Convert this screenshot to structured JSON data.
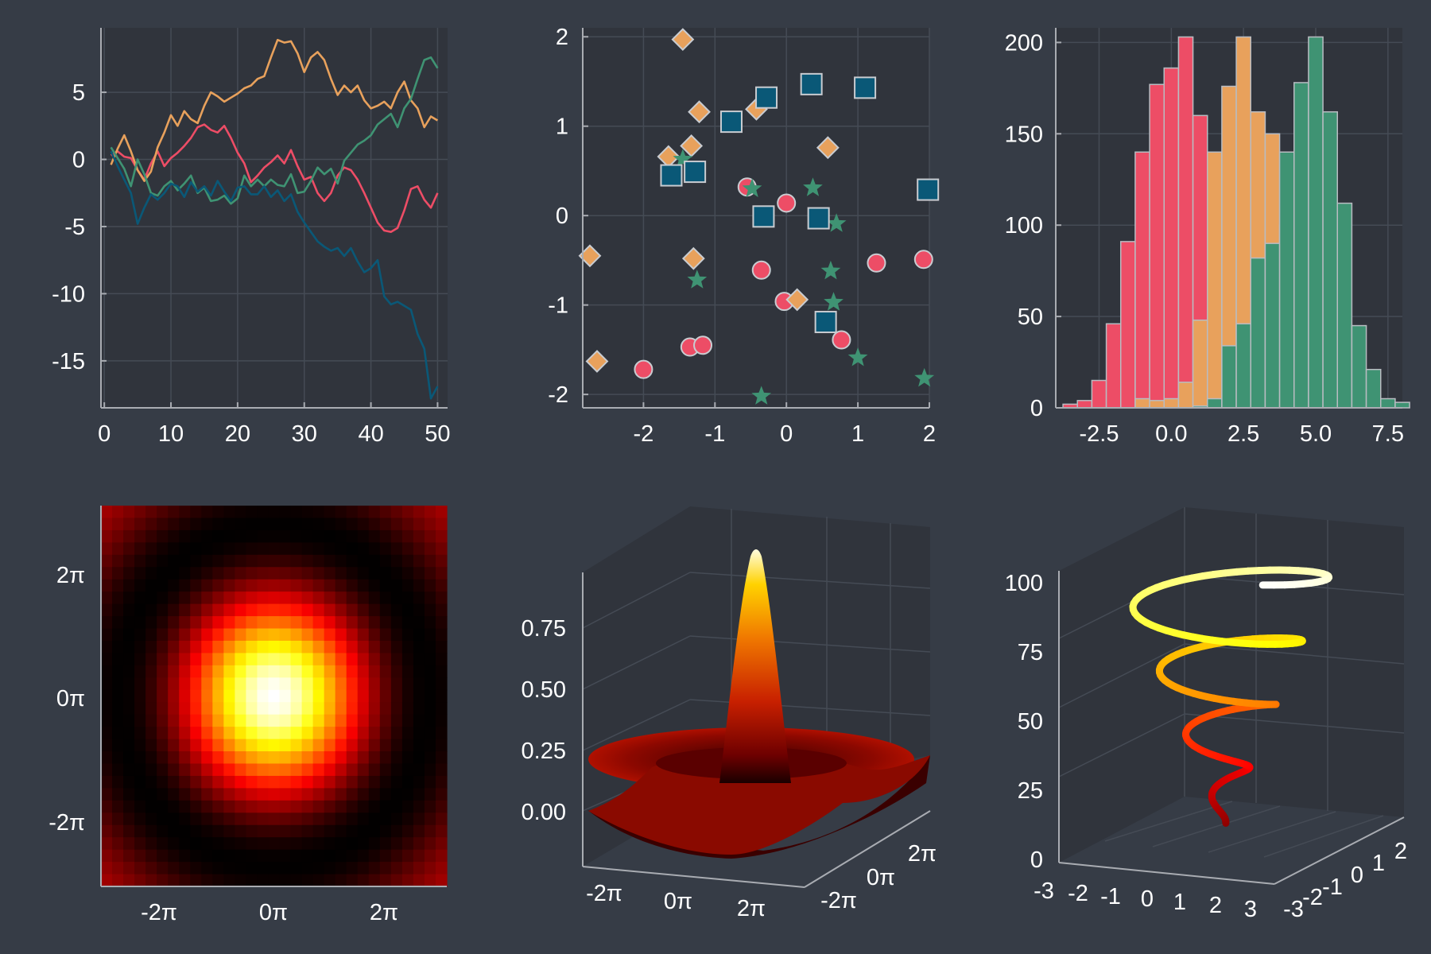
{
  "colors": {
    "background": "#363c46",
    "plot_bg": "#30343c",
    "grid": "#454b55",
    "axis": "#a9acb2",
    "text": "#ffffff",
    "series": [
      "#ed4d66",
      "#e8a15c",
      "#3f9373",
      "#0a5877"
    ]
  },
  "chart_data": [
    {
      "type": "line",
      "grid": true,
      "x": [
        1,
        2,
        3,
        4,
        5,
        6,
        7,
        8,
        9,
        10,
        11,
        12,
        13,
        14,
        15,
        16,
        17,
        18,
        19,
        20,
        21,
        22,
        23,
        24,
        25,
        26,
        27,
        28,
        29,
        30,
        31,
        32,
        33,
        34,
        35,
        36,
        37,
        38,
        39,
        40,
        41,
        42,
        43,
        44,
        45,
        46,
        47,
        48,
        49,
        50
      ],
      "xticks": [
        0,
        10,
        20,
        30,
        40,
        50
      ],
      "yticks": [
        5,
        0,
        -5,
        -10,
        -15
      ],
      "xlim": [
        -0.5,
        51.5
      ],
      "ylim": [
        -18.5,
        9.8
      ],
      "series": [
        {
          "color": "#ed4d66",
          "values": [
            0.3,
            0.6,
            0.2,
            0.1,
            -0.8,
            -1.5,
            -0.3,
            0.6,
            -0.5,
            0.1,
            0.5,
            1.0,
            1.6,
            2.4,
            2.6,
            2.2,
            2.0,
            2.5,
            1.6,
            0.5,
            -0.3,
            -1.7,
            -1.2,
            -0.6,
            -0.2,
            0.3,
            -0.3,
            0.7,
            -0.5,
            -1.5,
            -1.3,
            -2.5,
            -3.1,
            -2.5,
            -1.2,
            -0.6,
            -0.8,
            -1.5,
            -2.5,
            -3.6,
            -4.7,
            -5.3,
            -5.4,
            -5.1,
            -3.8,
            -2.2,
            -2.0,
            -3.0,
            -3.6,
            -2.5
          ]
        },
        {
          "color": "#e8a15c",
          "values": [
            -0.4,
            0.8,
            1.8,
            0.6,
            -0.8,
            -1.6,
            -0.9,
            0.9,
            2.0,
            3.3,
            2.5,
            3.6,
            3.0,
            2.7,
            4.0,
            5.0,
            4.7,
            4.3,
            4.6,
            4.9,
            5.3,
            5.5,
            6.0,
            6.2,
            7.6,
            8.9,
            8.7,
            8.8,
            7.9,
            6.5,
            7.6,
            8.0,
            7.4,
            6.0,
            4.8,
            5.5,
            5.0,
            5.5,
            4.4,
            3.8,
            4.0,
            4.3,
            3.8,
            5.0,
            5.8,
            4.4,
            3.8,
            2.4,
            3.2,
            2.9
          ]
        },
        {
          "color": "#3f9373",
          "values": [
            0.9,
            0.1,
            -0.7,
            -2.0,
            0.0,
            -1.1,
            -2.5,
            -2.7,
            -2.0,
            -1.6,
            -2.3,
            -1.8,
            -1.2,
            -2.5,
            -2.1,
            -3.1,
            -3.0,
            -2.7,
            -3.3,
            -2.9,
            -1.2,
            -2.0,
            -1.5,
            -2.0,
            -1.5,
            -1.9,
            -2.0,
            -1.1,
            -2.5,
            -2.4,
            -1.6,
            -0.6,
            -1.1,
            -0.7,
            -1.8,
            -0.1,
            0.5,
            1.1,
            1.4,
            1.8,
            2.6,
            3.0,
            3.4,
            2.4,
            3.8,
            4.5,
            6.0,
            7.4,
            7.6,
            6.8
          ]
        },
        {
          "color": "#0a5877",
          "values": [
            0.6,
            -0.5,
            -1.5,
            -2.5,
            -4.8,
            -3.6,
            -2.6,
            -3.0,
            -2.5,
            -1.8,
            -2.0,
            -2.8,
            -1.7,
            -2.4,
            -2.0,
            -2.7,
            -1.6,
            -2.4,
            -3.1,
            -2.1,
            -2.0,
            -2.6,
            -2.6,
            -2.0,
            -2.8,
            -2.3,
            -3.1,
            -2.6,
            -3.9,
            -4.7,
            -5.4,
            -6.1,
            -6.5,
            -6.8,
            -6.6,
            -7.2,
            -6.6,
            -7.6,
            -8.4,
            -8.1,
            -7.5,
            -10.2,
            -10.8,
            -10.6,
            -10.9,
            -11.2,
            -13.0,
            -14.1,
            -17.8,
            -16.9
          ]
        }
      ]
    },
    {
      "type": "scatter",
      "grid": true,
      "xticks": [
        -2,
        -1,
        0,
        1,
        2
      ],
      "yticks": [
        2,
        1,
        0,
        -1,
        -2
      ],
      "xlim": [
        -2.85,
        2.0
      ],
      "ylim": [
        -2.15,
        2.1
      ],
      "series": [
        {
          "color": "#ed4d66",
          "marker": "circle",
          "points": [
            [
              -2.0,
              -1.72
            ],
            [
              -1.35,
              -1.47
            ],
            [
              -1.17,
              -1.45
            ],
            [
              -0.55,
              0.32
            ],
            [
              -0.35,
              -0.61
            ],
            [
              -0.03,
              -0.96
            ],
            [
              0.0,
              0.14
            ],
            [
              0.77,
              -1.39
            ],
            [
              1.26,
              -0.53
            ],
            [
              1.92,
              -0.49
            ]
          ]
        },
        {
          "color": "#e8a15c",
          "marker": "diamond",
          "points": [
            [
              -2.75,
              -0.45
            ],
            [
              -2.65,
              -1.63
            ],
            [
              -1.45,
              1.97
            ],
            [
              -1.65,
              0.66
            ],
            [
              -1.33,
              0.78
            ],
            [
              -1.22,
              1.16
            ],
            [
              -1.3,
              -0.48
            ],
            [
              -0.42,
              1.19
            ],
            [
              0.15,
              -0.94
            ],
            [
              0.58,
              0.76
            ]
          ]
        },
        {
          "color": "#3f9373",
          "marker": "star",
          "points": [
            [
              -1.45,
              0.63
            ],
            [
              -1.25,
              -0.72
            ],
            [
              -0.48,
              0.3
            ],
            [
              -0.35,
              -2.02
            ],
            [
              0.37,
              0.31
            ],
            [
              0.7,
              -0.09
            ],
            [
              0.62,
              -0.62
            ],
            [
              0.66,
              -0.97
            ],
            [
              1.0,
              -1.59
            ],
            [
              1.93,
              -1.82
            ]
          ]
        },
        {
          "color": "#0a5877",
          "marker": "square",
          "points": [
            [
              -1.61,
              0.45
            ],
            [
              -1.28,
              0.49
            ],
            [
              -0.77,
              1.05
            ],
            [
              -0.28,
              1.32
            ],
            [
              -0.32,
              -0.01
            ],
            [
              0.35,
              1.47
            ],
            [
              0.45,
              -0.03
            ],
            [
              0.55,
              -1.19
            ],
            [
              1.1,
              1.43
            ],
            [
              1.98,
              0.29
            ]
          ]
        }
      ]
    },
    {
      "type": "bar",
      "subtype": "histogram",
      "stacked": false,
      "grid": true,
      "xticks": [
        "-2.5",
        "0.0",
        "2.5",
        "5.0",
        "7.5"
      ],
      "xtick_values": [
        -2.5,
        0,
        2.5,
        5,
        7.5
      ],
      "yticks": [
        200,
        150,
        100,
        50,
        0
      ],
      "xlim": [
        -4.0,
        8.0
      ],
      "ylim": [
        0,
        208
      ],
      "bin_width": 0.5,
      "series": [
        {
          "color": "#ed4d66",
          "bins": [
            [
              -3.5,
              2
            ],
            [
              -3.0,
              4
            ],
            [
              -2.5,
              15
            ],
            [
              -2.0,
              46
            ],
            [
              -1.5,
              91
            ],
            [
              -1.0,
              140
            ],
            [
              -0.5,
              177
            ],
            [
              0.0,
              186
            ],
            [
              0.5,
              203
            ],
            [
              1.0,
              160
            ],
            [
              1.5,
              127
            ],
            [
              2.0,
              70
            ],
            [
              2.5,
              40
            ],
            [
              3.0,
              17
            ],
            [
              3.5,
              6
            ]
          ]
        },
        {
          "color": "#e8a15c",
          "bins": [
            [
              -1.0,
              5
            ],
            [
              -0.5,
              4
            ],
            [
              0.0,
              5
            ],
            [
              0.5,
              14
            ],
            [
              1.0,
              48
            ],
            [
              1.5,
              140
            ],
            [
              2.0,
              176
            ],
            [
              2.5,
              203
            ],
            [
              3.0,
              162
            ],
            [
              3.5,
              150
            ],
            [
              4.0,
              100
            ],
            [
              4.5,
              44
            ],
            [
              5.0,
              12
            ],
            [
              5.5,
              6
            ],
            [
              6.0,
              3
            ]
          ]
        },
        {
          "color": "#3f9373",
          "bins": [
            [
              1.0,
              1
            ],
            [
              1.5,
              5
            ],
            [
              2.0,
              34
            ],
            [
              2.5,
              46
            ],
            [
              3.0,
              82
            ],
            [
              3.5,
              90
            ],
            [
              4.0,
              140
            ],
            [
              4.5,
              178
            ],
            [
              5.0,
              203
            ],
            [
              5.5,
              162
            ],
            [
              6.0,
              112
            ],
            [
              6.5,
              45
            ],
            [
              7.0,
              21
            ],
            [
              7.5,
              5
            ],
            [
              8.0,
              3
            ]
          ]
        }
      ]
    },
    {
      "type": "heatmap",
      "colormap": "hot",
      "function": "sin(r)/r",
      "xticks": [
        "-2π",
        "0π",
        "2π"
      ],
      "yticks": [
        "2π",
        "0π",
        "-2π"
      ]
    },
    {
      "type": "surface",
      "colormap": "hot",
      "function": "sin(r)/r",
      "zticks": [
        "0.75",
        "0.50",
        "0.25",
        "0.00"
      ],
      "xticks": [
        "-2π",
        "0π",
        "2π"
      ],
      "yticks": [
        "-2π",
        "0π",
        "2π"
      ]
    },
    {
      "type": "line",
      "subtype": "3d-helix",
      "colormap": "hot",
      "zticks": [
        "100",
        "75",
        "50",
        "25",
        "0"
      ],
      "xticks": [
        "-3",
        "-2",
        "-1",
        "0",
        "1",
        "2",
        "3"
      ],
      "yticks": [
        "-3",
        "-2",
        "-1",
        "0",
        "1",
        "2"
      ]
    }
  ]
}
